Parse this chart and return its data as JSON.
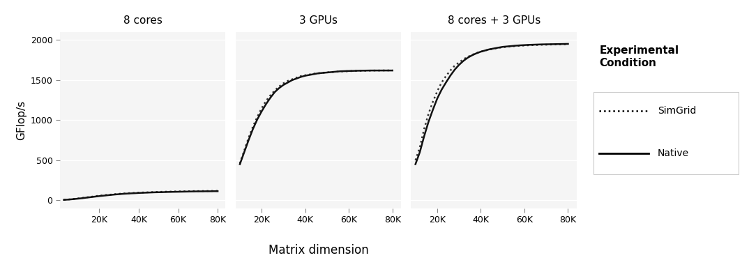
{
  "panels": [
    "8 cores",
    "3 GPUs",
    "8 cores + 3 GPUs"
  ],
  "xlabel": "Matrix dimension",
  "ylabel": "GFlop/s",
  "legend_title": "Experimental\nCondition",
  "legend_items": [
    "SimGrid",
    "Native"
  ],
  "ylim": [
    -100,
    2100
  ],
  "yticks": [
    0,
    500,
    1000,
    1500,
    2000
  ],
  "xtick_labels": [
    "20K",
    "40K",
    "60K",
    "80K"
  ],
  "panel_bg": "#f5f5f5",
  "strip_bg": "#c8c8c8",
  "grid_color": "#ffffff",
  "line_color_native": "#111111",
  "line_color_simgrid": "#333333",
  "cores8_native_x": [
    2000,
    4000,
    6000,
    8000,
    10000,
    12000,
    14000,
    16000,
    18000,
    20000,
    22000,
    24000,
    26000,
    28000,
    30000,
    32000,
    34000,
    36000,
    38000,
    40000,
    42000,
    44000,
    46000,
    48000,
    50000,
    52000,
    54000,
    56000,
    58000,
    60000,
    62000,
    64000,
    66000,
    68000,
    70000,
    72000,
    74000,
    76000,
    78000,
    80000
  ],
  "cores8_native_y": [
    5,
    8,
    12,
    17,
    22,
    28,
    34,
    40,
    46,
    52,
    57,
    62,
    67,
    72,
    76,
    80,
    83,
    86,
    88,
    91,
    93,
    95,
    97,
    99,
    100,
    101,
    103,
    104,
    105,
    106,
    107,
    108,
    109,
    110,
    111,
    111,
    112,
    112,
    113,
    113
  ],
  "cores8_simgrid_x": [
    2000,
    4000,
    6000,
    8000,
    10000,
    12000,
    14000,
    16000,
    18000,
    20000,
    22000,
    24000,
    26000,
    28000,
    30000,
    32000,
    34000,
    36000,
    38000,
    40000,
    42000,
    44000,
    46000,
    48000,
    50000,
    52000,
    54000,
    56000,
    58000,
    60000,
    62000,
    64000,
    66000,
    68000,
    70000,
    72000,
    74000,
    76000,
    78000,
    80000
  ],
  "cores8_simgrid_y": [
    6,
    9,
    14,
    19,
    25,
    31,
    38,
    44,
    51,
    57,
    62,
    67,
    71,
    76,
    80,
    84,
    87,
    90,
    92,
    95,
    97,
    99,
    101,
    103,
    104,
    106,
    107,
    108,
    109,
    110,
    111,
    112,
    113,
    114,
    114,
    115,
    115,
    116,
    116,
    117
  ],
  "gpus3_native_x": [
    10000,
    12000,
    14000,
    16000,
    18000,
    20000,
    22000,
    24000,
    26000,
    28000,
    30000,
    32000,
    34000,
    36000,
    38000,
    40000,
    42000,
    44000,
    46000,
    48000,
    50000,
    52000,
    54000,
    56000,
    58000,
    60000,
    62000,
    64000,
    66000,
    68000,
    70000,
    72000,
    74000,
    76000,
    78000,
    80000
  ],
  "gpus3_native_y": [
    450,
    600,
    750,
    890,
    1010,
    1110,
    1200,
    1280,
    1350,
    1400,
    1440,
    1470,
    1500,
    1520,
    1540,
    1555,
    1565,
    1575,
    1585,
    1590,
    1595,
    1600,
    1605,
    1610,
    1612,
    1614,
    1615,
    1617,
    1618,
    1619,
    1620,
    1620,
    1620,
    1620,
    1620,
    1620
  ],
  "gpus3_simgrid_x": [
    10000,
    12000,
    14000,
    16000,
    18000,
    20000,
    22000,
    24000,
    26000,
    28000,
    30000,
    32000,
    34000,
    36000,
    38000,
    40000,
    42000,
    44000,
    46000,
    48000,
    50000,
    52000,
    54000,
    56000,
    58000,
    60000,
    62000,
    64000,
    66000,
    68000,
    70000,
    72000,
    74000,
    76000,
    78000,
    80000
  ],
  "gpus3_simgrid_y": [
    460,
    620,
    780,
    920,
    1040,
    1150,
    1240,
    1310,
    1370,
    1420,
    1460,
    1490,
    1510,
    1530,
    1550,
    1560,
    1570,
    1580,
    1585,
    1592,
    1596,
    1600,
    1604,
    1608,
    1610,
    1612,
    1614,
    1616,
    1617,
    1618,
    1619,
    1620,
    1620,
    1621,
    1621,
    1622
  ],
  "hybrid_native_x": [
    10000,
    12000,
    14000,
    16000,
    18000,
    20000,
    22000,
    24000,
    26000,
    28000,
    30000,
    32000,
    34000,
    36000,
    38000,
    40000,
    42000,
    44000,
    46000,
    48000,
    50000,
    52000,
    54000,
    56000,
    58000,
    60000,
    62000,
    64000,
    66000,
    68000,
    70000,
    72000,
    74000,
    76000,
    78000,
    80000
  ],
  "hybrid_native_y": [
    450,
    600,
    800,
    980,
    1130,
    1270,
    1380,
    1470,
    1555,
    1630,
    1690,
    1740,
    1780,
    1810,
    1835,
    1855,
    1870,
    1885,
    1895,
    1905,
    1915,
    1920,
    1925,
    1930,
    1934,
    1937,
    1940,
    1942,
    1944,
    1946,
    1947,
    1948,
    1949,
    1950,
    1951,
    1952
  ],
  "hybrid_simgrid_x": [
    10000,
    12000,
    14000,
    16000,
    18000,
    20000,
    22000,
    24000,
    26000,
    28000,
    30000,
    32000,
    34000,
    36000,
    38000,
    40000,
    42000,
    44000,
    46000,
    48000,
    50000,
    52000,
    54000,
    56000,
    58000,
    60000,
    62000,
    64000,
    66000,
    68000,
    70000,
    72000,
    74000,
    76000,
    78000,
    80000
  ],
  "hybrid_simgrid_y": [
    500,
    660,
    890,
    1080,
    1230,
    1360,
    1470,
    1550,
    1620,
    1680,
    1720,
    1760,
    1790,
    1815,
    1838,
    1855,
    1870,
    1882,
    1893,
    1902,
    1910,
    1916,
    1921,
    1926,
    1929,
    1932,
    1935,
    1937,
    1939,
    1941,
    1942,
    1944,
    1945,
    1946,
    1947,
    1948
  ]
}
